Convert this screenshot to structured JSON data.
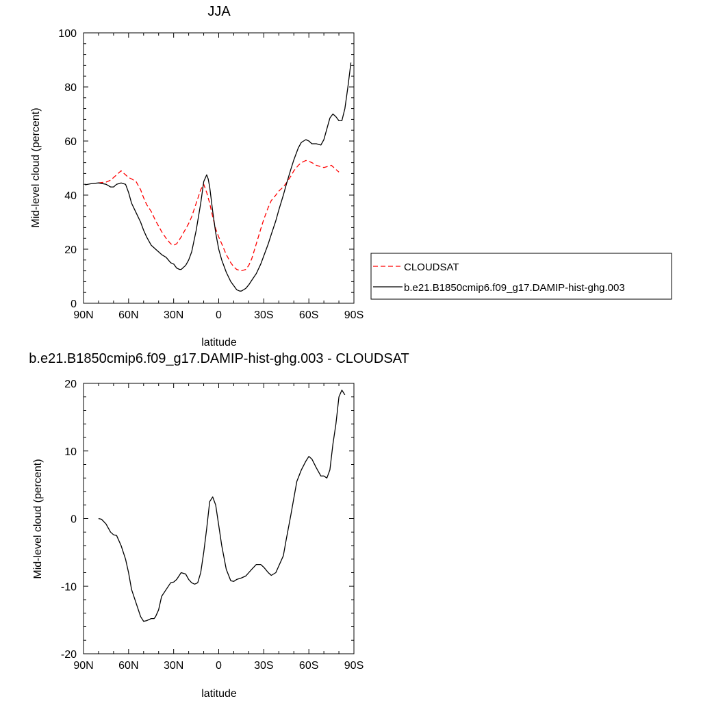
{
  "chart_data": [
    {
      "type": "line",
      "title": "JJA",
      "xlabel": "latitude",
      "ylabel": "Mid-level cloud (percent)",
      "xlim": [
        -90,
        90
      ],
      "ylim": [
        0,
        100
      ],
      "xticks": [
        -90,
        -60,
        -30,
        0,
        30,
        60,
        90
      ],
      "xtick_labels": [
        "90N",
        "60N",
        "30N",
        "0",
        "30S",
        "60S",
        "90S"
      ],
      "yticks": [
        0,
        20,
        40,
        60,
        80,
        100
      ],
      "ytick_labels": [
        "0",
        "20",
        "40",
        "60",
        "80",
        "100"
      ],
      "legend_position": "right, outside plot",
      "series": [
        {
          "name": "CLOUDSAT",
          "color": "#ff0000",
          "dash": "dashed",
          "x": [
            -80,
            -75,
            -72,
            -68,
            -65,
            -62,
            -60,
            -58,
            -55,
            -52,
            -50,
            -48,
            -45,
            -42,
            -40,
            -38,
            -35,
            -32,
            -30,
            -28,
            -25,
            -22,
            -20,
            -18,
            -15,
            -12,
            -10,
            -8,
            -6,
            -4,
            -2,
            0,
            2,
            5,
            8,
            10,
            12,
            15,
            18,
            20,
            22,
            25,
            28,
            30,
            33,
            35,
            38,
            40,
            43,
            45,
            48,
            50,
            53,
            55,
            58,
            60,
            62,
            65,
            68,
            70,
            72,
            75,
            78,
            80
          ],
          "y": [
            44.5,
            44.8,
            45.5,
            47.5,
            49,
            47.5,
            46.5,
            46,
            45,
            42,
            39,
            36.5,
            34,
            30.5,
            28.5,
            26.5,
            24,
            22,
            21.5,
            22,
            24.5,
            27.5,
            29.5,
            32,
            37,
            42,
            44,
            41,
            37,
            32,
            27.5,
            24.5,
            22,
            18,
            15,
            13.5,
            12.5,
            12,
            12.5,
            14,
            16.5,
            22,
            27.5,
            31,
            35.5,
            38,
            40,
            41.5,
            43,
            44.5,
            47,
            49,
            51,
            52,
            52.8,
            52.5,
            52,
            51,
            50.5,
            50.2,
            50.5,
            51,
            49.5,
            48.5
          ]
        },
        {
          "name": "b.e21.B1850cmip6.f09_g17.DAMIP-hist-ghg.003",
          "color": "#000000",
          "dash": "solid",
          "x": [
            -89,
            -85,
            -80,
            -75,
            -72,
            -70,
            -68,
            -65,
            -62,
            -60,
            -58,
            -55,
            -52,
            -50,
            -48,
            -45,
            -42,
            -40,
            -38,
            -35,
            -32,
            -30,
            -28,
            -26,
            -25,
            -22,
            -20,
            -18,
            -15,
            -12,
            -10,
            -8,
            -7,
            -6,
            -4,
            -2,
            0,
            2,
            5,
            8,
            10,
            12,
            14,
            15,
            16,
            18,
            20,
            22,
            25,
            28,
            30,
            33,
            35,
            38,
            40,
            43,
            45,
            48,
            50,
            53,
            55,
            58,
            60,
            62,
            65,
            68,
            70,
            72,
            74,
            76,
            78,
            80,
            82,
            84,
            86,
            88
          ],
          "y": [
            43.8,
            44.2,
            44.5,
            44,
            43,
            43,
            44,
            44.5,
            44,
            41,
            37,
            33.5,
            30,
            27,
            24.5,
            21.5,
            20,
            19,
            18,
            17,
            15,
            14.5,
            13,
            12.5,
            12.5,
            14,
            16,
            19,
            27,
            37,
            45,
            47.5,
            46,
            43,
            34,
            26,
            20,
            16,
            11.5,
            8,
            6.5,
            5,
            4.5,
            4.5,
            4.8,
            5.5,
            6.8,
            8.5,
            11,
            14.5,
            17.5,
            22,
            25.5,
            30.5,
            34.5,
            40,
            44,
            49.5,
            53,
            57.5,
            59.5,
            60.5,
            60,
            59,
            59,
            58.5,
            60.5,
            64.5,
            68.5,
            70,
            69,
            67.5,
            67.5,
            72,
            80,
            89
          ]
        }
      ]
    },
    {
      "type": "line",
      "title": "b.e21.B1850cmip6.f09_g17.DAMIP-hist-ghg.003 - CLOUDSAT",
      "xlabel": "latitude",
      "ylabel": "Mid-level cloud (percent)",
      "xlim": [
        -90,
        90
      ],
      "ylim": [
        -20,
        20
      ],
      "xticks": [
        -90,
        -60,
        -30,
        0,
        30,
        60,
        90
      ],
      "xtick_labels": [
        "90N",
        "60N",
        "30N",
        "0",
        "30S",
        "60S",
        "90S"
      ],
      "yticks": [
        -20,
        -10,
        0,
        10,
        20
      ],
      "ytick_labels": [
        "-20",
        "-10",
        "0",
        "10",
        "20"
      ],
      "series": [
        {
          "color": "#000000",
          "dash": "solid",
          "x": [
            -80,
            -78,
            -75,
            -72,
            -70,
            -68,
            -65,
            -62,
            -60,
            -58,
            -55,
            -52,
            -50,
            -48,
            -45,
            -43,
            -42,
            -40,
            -38,
            -35,
            -32,
            -30,
            -28,
            -25,
            -22,
            -20,
            -18,
            -16,
            -14,
            -12,
            -10,
            -8,
            -7,
            -6,
            -4,
            -2,
            0,
            2,
            5,
            8,
            10,
            12,
            15,
            18,
            20,
            22,
            25,
            28,
            30,
            33,
            35,
            38,
            40,
            43,
            45,
            48,
            50,
            52,
            55,
            58,
            60,
            62,
            65,
            68,
            70,
            72,
            74,
            76,
            78,
            80,
            82,
            84
          ],
          "y": [
            0,
            -0.1,
            -0.8,
            -2,
            -2.4,
            -2.5,
            -4,
            -6,
            -8,
            -10.5,
            -12.5,
            -14.5,
            -15.2,
            -15.1,
            -14.8,
            -14.8,
            -14.5,
            -13.5,
            -11.5,
            -10.5,
            -9.5,
            -9.4,
            -9,
            -8,
            -8.2,
            -9,
            -9.5,
            -9.7,
            -9.5,
            -8,
            -5,
            -1.5,
            0.5,
            2.5,
            3.2,
            2,
            -1,
            -4,
            -7.5,
            -9.2,
            -9.3,
            -9,
            -8.8,
            -8.5,
            -8,
            -7.5,
            -6.8,
            -6.8,
            -7.2,
            -8,
            -8.4,
            -8,
            -7,
            -5.5,
            -3,
            0.5,
            3,
            5.5,
            7.2,
            8.5,
            9.2,
            8.8,
            7.5,
            6.3,
            6.3,
            6,
            7.2,
            11,
            14,
            18,
            19,
            18.3
          ]
        }
      ]
    }
  ],
  "legend": {
    "items": [
      {
        "label": "CLOUDSAT"
      },
      {
        "label": "b.e21.B1850cmip6.f09_g17.DAMIP-hist-ghg.003"
      }
    ]
  }
}
